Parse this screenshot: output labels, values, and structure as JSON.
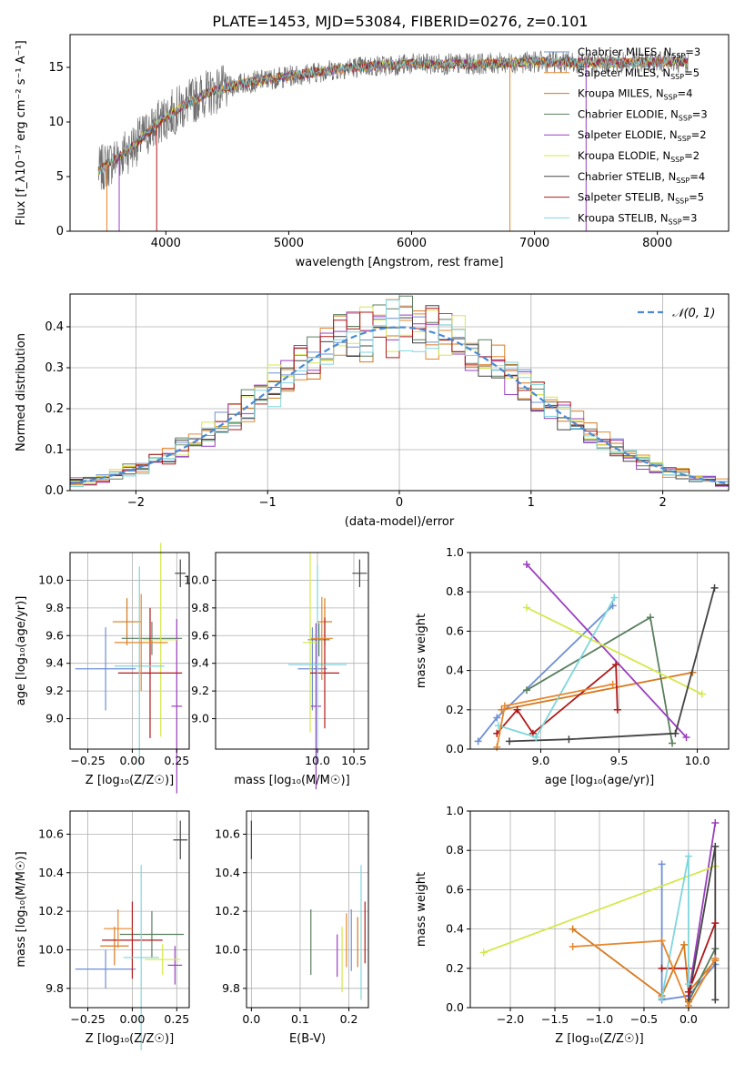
{
  "figure_title": "PLATE=1453, MJD=53084, FIBERID=0276, z=0.101",
  "series": [
    {
      "name": "Chabrier MILES",
      "nssp": "3",
      "color": "#6f8fd6"
    },
    {
      "name": "Salpeter MILES",
      "nssp": "5",
      "color": "#e6872e"
    },
    {
      "name": "Kroupa MILES",
      "nssp": "4",
      "color": "#d67a1e"
    },
    {
      "name": "Chabrier ELODIE",
      "nssp": "3",
      "color": "#5a7f5e"
    },
    {
      "name": "Salpeter ELODIE",
      "nssp": "2",
      "color": "#9b3fbf"
    },
    {
      "name": "Kroupa ELODIE",
      "nssp": "2",
      "color": "#d4e84a"
    },
    {
      "name": "Chabrier STELIB",
      "nssp": "4",
      "color": "#444444"
    },
    {
      "name": "Salpeter STELIB",
      "nssp": "5",
      "color": "#b01818"
    },
    {
      "name": "Kroupa STELIB",
      "nssp": "3",
      "color": "#7fd6dc"
    }
  ],
  "chart_data": [
    {
      "id": "spectrum",
      "type": "line",
      "xlabel": "wavelength [Angstrom, rest frame]",
      "ylabel": "Flux [f_λ10⁻¹⁷ erg cm⁻² s⁻¹ A⁻¹]",
      "xlim": [
        3220,
        8580
      ],
      "ylim": [
        0,
        18
      ],
      "xticks": [
        "4000",
        "5000",
        "6000",
        "7000",
        "8000"
      ],
      "xtick_values": [
        4000,
        5000,
        6000,
        7000,
        8000
      ],
      "yticks": [
        "0",
        "5",
        "10",
        "15"
      ],
      "ytick_values": [
        0,
        5,
        10,
        15
      ],
      "legend_prefix": "N",
      "legend_sub": "SSP",
      "continuum": [
        [
          3450,
          5.5
        ],
        [
          3700,
          7.5
        ],
        [
          4000,
          10.5
        ],
        [
          4300,
          12.5
        ],
        [
          4600,
          13.5
        ],
        [
          5000,
          14.2
        ],
        [
          5500,
          15.0
        ],
        [
          6000,
          15.3
        ],
        [
          6500,
          15.3
        ],
        [
          7000,
          15.5
        ],
        [
          7500,
          15.4
        ],
        [
          8000,
          15.5
        ],
        [
          8250,
          15.5
        ]
      ],
      "spikes": [
        [
          3520,
          0
        ],
        [
          3620,
          0
        ],
        [
          3925,
          0
        ],
        [
          6800,
          0
        ],
        [
          7420,
          0
        ]
      ],
      "data_color": "#707070"
    },
    {
      "id": "residuals",
      "type": "bar",
      "xlabel": "(data-model)/error",
      "ylabel": "Normed distribution",
      "xlim": [
        -2.5,
        2.5
      ],
      "ylim": [
        0,
        0.48
      ],
      "xticks": [
        "−2",
        "−1",
        "0",
        "1",
        "2"
      ],
      "xtick_values": [
        -2,
        -1,
        0,
        1,
        2
      ],
      "yticks": [
        "0.0",
        "0.1",
        "0.2",
        "0.3",
        "0.4"
      ],
      "ytick_values": [
        0,
        0.1,
        0.2,
        0.3,
        0.4
      ],
      "bin_width": 0.1,
      "gaussian_label": "𝒩(0, 1)",
      "gaussian_color": "#4a8ad4"
    },
    {
      "id": "age_vs_Z",
      "type": "scatter",
      "xlabel": "Z [log₁₀(Z/Z☉)]",
      "ylabel": "age  [log₁₀(age/yr)]",
      "xlim": [
        -0.35,
        0.32
      ],
      "ylim": [
        8.78,
        10.2
      ],
      "xticks": [
        "−0.25",
        "0.00",
        "0.25"
      ],
      "xtick_values": [
        -0.25,
        0,
        0.25
      ],
      "yticks": [
        "9.0",
        "9.2",
        "9.4",
        "9.6",
        "9.8",
        "10.0"
      ],
      "ytick_values": [
        9.0,
        9.2,
        9.4,
        9.6,
        9.8,
        10.0
      ],
      "points": [
        {
          "x": -0.15,
          "y": 9.36,
          "xe": 0.17,
          "ye": 0.3,
          "c": 0
        },
        {
          "x": -0.03,
          "y": 9.7,
          "xe": 0.08,
          "ye": 0.17,
          "c": 2
        },
        {
          "x": 0.11,
          "y": 9.58,
          "xe": 0.17,
          "ye": 0.12,
          "c": 3
        },
        {
          "x": 0.25,
          "y": 9.09,
          "xe": 0.03,
          "ye": 0.63,
          "c": 4
        },
        {
          "x": 0.16,
          "y": 9.57,
          "xe": 0.1,
          "ye": 0.7,
          "c": 5
        },
        {
          "x": 0.1,
          "y": 9.33,
          "xe": 0.18,
          "ye": 0.47,
          "c": 7
        },
        {
          "x": 0.04,
          "y": 9.38,
          "xe": 0.14,
          "ye": 0.72,
          "c": 8
        },
        {
          "x": 0.05,
          "y": 9.55,
          "xe": 0.15,
          "ye": 0.35,
          "c": 1
        }
      ],
      "ref": {
        "x": 0.27,
        "y": 10.05,
        "xe": 0.03,
        "ye": 0.1,
        "c": 6
      }
    },
    {
      "id": "age_vs_mass",
      "type": "scatter",
      "xlabel": "mass [log₁₀(M/M☉)]",
      "ylabel": "",
      "xlim": [
        8.6,
        10.7
      ],
      "ylim": [
        8.78,
        10.2
      ],
      "xticks": [
        "10.0",
        "10.5"
      ],
      "xtick_values": [
        10.0,
        10.5
      ],
      "yticks": [
        "9.0",
        "9.2",
        "9.4",
        "9.6",
        "9.8",
        "10.0"
      ],
      "ytick_values": [
        9.0,
        9.2,
        9.4,
        9.6,
        9.8,
        10.0
      ],
      "points": [
        {
          "x": 9.93,
          "y": 9.36,
          "xe": 0.2,
          "ye": 0.3,
          "c": 0
        },
        {
          "x": 10.1,
          "y": 9.7,
          "xe": 0.1,
          "ye": 0.17,
          "c": 2
        },
        {
          "x": 10.02,
          "y": 9.57,
          "xe": 0.15,
          "ye": 0.12,
          "c": 3
        },
        {
          "x": 9.98,
          "y": 9.09,
          "xe": 0.07,
          "ye": 0.6,
          "c": 4
        },
        {
          "x": 9.9,
          "y": 9.55,
          "xe": 0.1,
          "ye": 0.65,
          "c": 5
        },
        {
          "x": 10.1,
          "y": 9.33,
          "xe": 0.2,
          "ye": 0.4,
          "c": 7
        },
        {
          "x": 10.0,
          "y": 9.39,
          "xe": 0.4,
          "ye": 0.72,
          "c": 8
        },
        {
          "x": 10.06,
          "y": 9.58,
          "xe": 0.15,
          "ye": 0.3,
          "c": 1
        }
      ],
      "ref": {
        "x": 10.58,
        "y": 10.05,
        "xe": 0.1,
        "ye": 0.1,
        "c": 6
      }
    },
    {
      "id": "weight_vs_age",
      "type": "line",
      "xlabel": "age  [log₁₀(age/yr)]",
      "ylabel": "mass weight",
      "xlim": [
        8.55,
        10.2
      ],
      "ylim": [
        0,
        1
      ],
      "xticks": [
        "9.0",
        "9.5",
        "10.0"
      ],
      "xtick_values": [
        9.0,
        9.5,
        10.0
      ],
      "yticks": [
        "0.0",
        "0.2",
        "0.4",
        "0.6",
        "0.8",
        "1.0"
      ],
      "ytick_values": [
        0,
        0.2,
        0.4,
        0.6,
        0.8,
        1.0
      ],
      "lines": [
        {
          "c": 0,
          "pts": [
            [
              8.6,
              0.04
            ],
            [
              8.72,
              0.16
            ],
            [
              9.46,
              0.73
            ]
          ]
        },
        {
          "c": 2,
          "pts": [
            [
              8.75,
              0.2
            ],
            [
              9.97,
              0.39
            ]
          ]
        },
        {
          "c": 3,
          "pts": [
            [
              8.91,
              0.3
            ],
            [
              9.7,
              0.67
            ],
            [
              9.84,
              0.03
            ]
          ]
        },
        {
          "c": 4,
          "pts": [
            [
              8.91,
              0.94
            ],
            [
              9.93,
              0.06
            ]
          ]
        },
        {
          "c": 5,
          "pts": [
            [
              8.91,
              0.72
            ],
            [
              10.03,
              0.28
            ]
          ]
        },
        {
          "c": 6,
          "pts": [
            [
              8.8,
              0.04
            ],
            [
              9.18,
              0.05
            ],
            [
              9.86,
              0.08
            ],
            [
              10.11,
              0.82
            ]
          ]
        },
        {
          "c": 7,
          "pts": [
            [
              8.72,
              0.08
            ],
            [
              8.85,
              0.2
            ],
            [
              8.95,
              0.08
            ],
            [
              9.48,
              0.43
            ],
            [
              9.49,
              0.2
            ]
          ]
        },
        {
          "c": 8,
          "pts": [
            [
              8.73,
              0.12
            ],
            [
              8.97,
              0.06
            ],
            [
              9.47,
              0.77
            ]
          ]
        },
        {
          "c": 1,
          "pts": [
            [
              8.72,
              0.01
            ],
            [
              8.77,
              0.22
            ],
            [
              9.46,
              0.33
            ]
          ]
        }
      ]
    },
    {
      "id": "mass_vs_Z",
      "type": "scatter",
      "xlabel": "Z [log₁₀(Z/Z☉)]",
      "ylabel": "mass [log₁₀(M/M☉)]",
      "xlim": [
        -0.35,
        0.32
      ],
      "ylim": [
        9.7,
        10.72
      ],
      "xticks": [
        "−0.25",
        "0.00",
        "0.25"
      ],
      "xtick_values": [
        -0.25,
        0,
        0.25
      ],
      "yticks": [
        "9.8",
        "10.0",
        "10.2",
        "10.4",
        "10.6"
      ],
      "ytick_values": [
        9.8,
        10.0,
        10.2,
        10.4,
        10.6
      ],
      "points": [
        {
          "x": -0.15,
          "y": 9.9,
          "xe": 0.17,
          "ye": 0.1,
          "c": 0
        },
        {
          "x": -0.1,
          "y": 10.02,
          "xe": 0.08,
          "ye": 0.1,
          "c": 2
        },
        {
          "x": 0.11,
          "y": 10.08,
          "xe": 0.18,
          "ye": 0.12,
          "c": 3
        },
        {
          "x": 0.24,
          "y": 9.92,
          "xe": 0.04,
          "ye": 0.1,
          "c": 4
        },
        {
          "x": 0.17,
          "y": 9.95,
          "xe": 0.1,
          "ye": 0.08,
          "c": 5
        },
        {
          "x": 0.0,
          "y": 10.05,
          "xe": 0.17,
          "ye": 0.2,
          "c": 7
        },
        {
          "x": 0.05,
          "y": 9.96,
          "xe": 0.1,
          "ye": 0.48,
          "c": 8
        },
        {
          "x": -0.08,
          "y": 10.11,
          "xe": 0.08,
          "ye": 0.1,
          "c": 1
        }
      ],
      "ref": {
        "x": 0.27,
        "y": 10.57,
        "xe": 0.04,
        "ye": 0.1,
        "c": 6
      }
    },
    {
      "id": "mass_vs_ebv",
      "type": "scatter",
      "xlabel": "E(B-V)",
      "ylabel": "",
      "xlim": [
        -0.01,
        0.24
      ],
      "ylim": [
        9.7,
        10.72
      ],
      "xticks": [
        "0.0",
        "0.1",
        "0.2"
      ],
      "xtick_values": [
        0,
        0.1,
        0.2
      ],
      "yticks": [
        "9.8",
        "10.0",
        "10.2",
        "10.4",
        "10.6"
      ],
      "ytick_values": [
        9.8,
        10.0,
        10.2,
        10.4,
        10.6
      ],
      "points": [
        {
          "x": 0.0,
          "y": 10.57,
          "xe": 0,
          "ye": 0.1,
          "c": 6
        },
        {
          "x": 0.122,
          "y": 10.04,
          "xe": 0,
          "ye": 0.17,
          "c": 3
        },
        {
          "x": 0.176,
          "y": 9.97,
          "xe": 0,
          "ye": 0.11,
          "c": 4
        },
        {
          "x": 0.186,
          "y": 9.95,
          "xe": 0,
          "ye": 0.17,
          "c": 5
        },
        {
          "x": 0.195,
          "y": 10.05,
          "xe": 0,
          "ye": 0.14,
          "c": 1
        },
        {
          "x": 0.205,
          "y": 10.05,
          "xe": 0,
          "ye": 0.16,
          "c": 0
        },
        {
          "x": 0.218,
          "y": 10.04,
          "xe": 0,
          "ye": 0.13,
          "c": 2
        },
        {
          "x": 0.225,
          "y": 10.09,
          "xe": 0,
          "ye": 0.35,
          "c": 8
        },
        {
          "x": 0.233,
          "y": 10.09,
          "xe": 0,
          "ye": 0.16,
          "c": 7
        }
      ]
    },
    {
      "id": "weight_vs_Z",
      "type": "line",
      "xlabel": "Z [log₁₀(Z/Z☉)]",
      "ylabel": "mass weight",
      "xlim": [
        -2.45,
        0.45
      ],
      "ylim": [
        0,
        1
      ],
      "xticks": [
        "−2.0",
        "−1.5",
        "−1.0",
        "−0.5",
        "0.0"
      ],
      "xtick_values": [
        -2,
        -1.5,
        -1,
        -0.5,
        0
      ],
      "yticks": [
        "0.0",
        "0.2",
        "0.4",
        "0.6",
        "0.8",
        "1.0"
      ],
      "ytick_values": [
        0,
        0.2,
        0.4,
        0.6,
        0.8,
        1.0
      ],
      "lines": [
        {
          "c": 0,
          "pts": [
            [
              -0.3,
              0.73
            ],
            [
              -0.3,
              0.04
            ],
            [
              0.0,
              0.06
            ],
            [
              0.3,
              0.22
            ]
          ]
        },
        {
          "c": 2,
          "pts": [
            [
              -1.3,
              0.4
            ],
            [
              -0.3,
              0.06
            ],
            [
              -0.05,
              0.32
            ],
            [
              0.0,
              0.08
            ],
            [
              0.3,
              0.24
            ]
          ]
        },
        {
          "c": 3,
          "pts": [
            [
              0.0,
              0.03
            ],
            [
              0.3,
              0.3
            ]
          ]
        },
        {
          "c": 4,
          "pts": [
            [
              0.0,
              0.06
            ],
            [
              0.3,
              0.94
            ]
          ]
        },
        {
          "c": 5,
          "pts": [
            [
              -2.3,
              0.28
            ],
            [
              0.3,
              0.72
            ]
          ]
        },
        {
          "c": 6,
          "pts": [
            [
              0.0,
              0.04
            ],
            [
              0.3,
              0.82
            ],
            [
              0.3,
              0.04
            ]
          ]
        },
        {
          "c": 7,
          "pts": [
            [
              -0.3,
              0.2
            ],
            [
              0.0,
              0.2
            ],
            [
              0.0,
              0.08
            ],
            [
              0.3,
              0.43
            ]
          ]
        },
        {
          "c": 8,
          "pts": [
            [
              -0.3,
              0.05
            ],
            [
              0.0,
              0.77
            ],
            [
              0.0,
              0.12
            ]
          ]
        },
        {
          "c": 1,
          "pts": [
            [
              -1.3,
              0.31
            ],
            [
              -0.3,
              0.34
            ],
            [
              0.0,
              0.01
            ],
            [
              0.3,
              0.25
            ]
          ]
        }
      ]
    }
  ]
}
